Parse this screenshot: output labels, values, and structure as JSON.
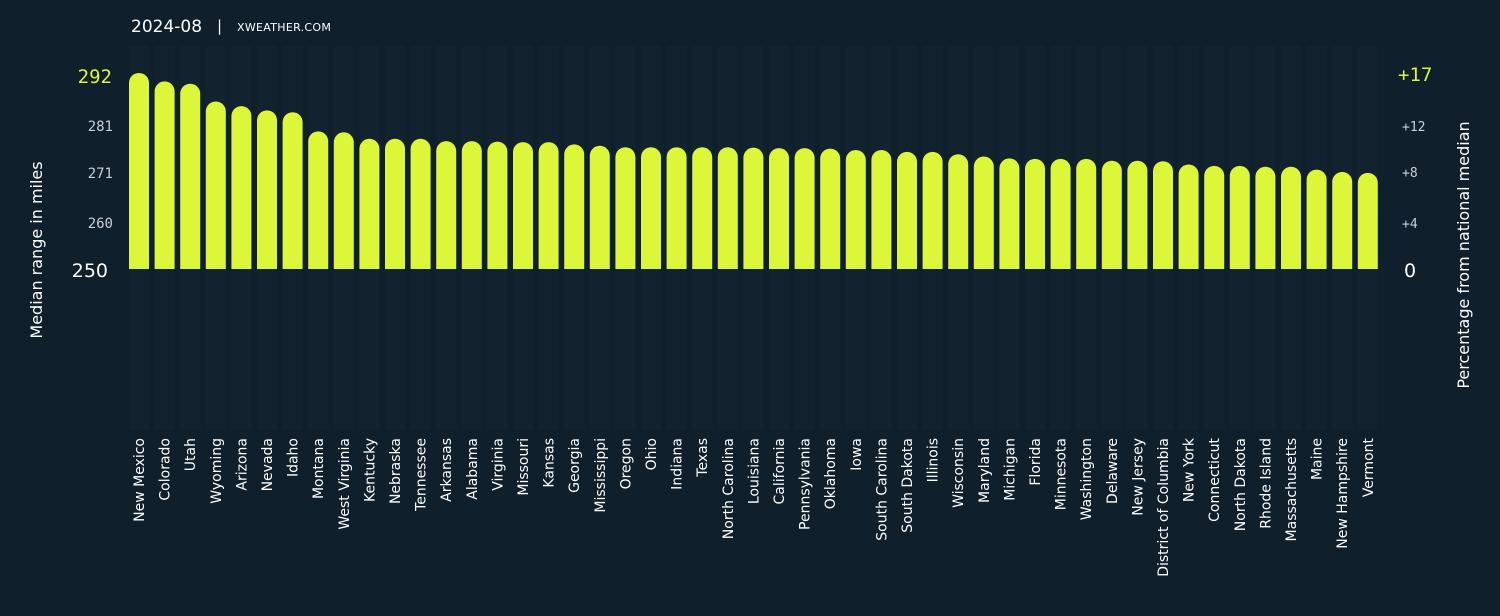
{
  "header": {
    "date": "2024-08",
    "separator": "|",
    "site": "XWEATHER.COM"
  },
  "colors": {
    "background": "#0f1f2b",
    "bar": "#dcf63a",
    "accent": "#dcf63a"
  },
  "chart_data": {
    "type": "bar",
    "ylabel": "Median range in miles",
    "y2label": "Percentage from national median",
    "ylim": [
      250,
      292
    ],
    "y_ticks": [
      "292",
      "281",
      "271",
      "260",
      "250"
    ],
    "y2_ticks": [
      "+17",
      "+12",
      "+8",
      "+4",
      "0"
    ],
    "grid": false,
    "categories": [
      "New Mexico",
      "Colorado",
      "Utah",
      "Wyoming",
      "Arizona",
      "Nevada",
      "Idaho",
      "Montana",
      "West Virginia",
      "Kentucky",
      "Nebraska",
      "Tennessee",
      "Arkansas",
      "Alabama",
      "Virginia",
      "Missouri",
      "Kansas",
      "Georgia",
      "Mississippi",
      "Oregon",
      "Ohio",
      "Indiana",
      "Texas",
      "North Carolina",
      "Louisiana",
      "California",
      "Pennsylvania",
      "Oklahoma",
      "Iowa",
      "South Carolina",
      "South Dakota",
      "Illinois",
      "Wisconsin",
      "Maryland",
      "Michigan",
      "Florida",
      "Minnesota",
      "Washington",
      "Delaware",
      "New Jersey",
      "District of Columbia",
      "New York",
      "Connecticut",
      "North Dakota",
      "Rhode Island",
      "Massachusetts",
      "Maine",
      "New Hampshire",
      "Vermont"
    ],
    "values": [
      292.0,
      290.2,
      289.7,
      285.9,
      284.9,
      284.0,
      283.6,
      279.5,
      279.3,
      277.9,
      277.9,
      277.9,
      277.4,
      277.4,
      277.3,
      277.2,
      277.2,
      276.7,
      276.4,
      276.1,
      276.1,
      276.1,
      276.1,
      276.1,
      276.0,
      275.9,
      275.9,
      275.8,
      275.5,
      275.5,
      275.1,
      275.1,
      274.6,
      274.1,
      273.7,
      273.6,
      273.6,
      273.6,
      273.2,
      273.2,
      273.1,
      272.4,
      272.1,
      272.1,
      271.9,
      271.9,
      271.3,
      270.8,
      270.6
    ]
  }
}
